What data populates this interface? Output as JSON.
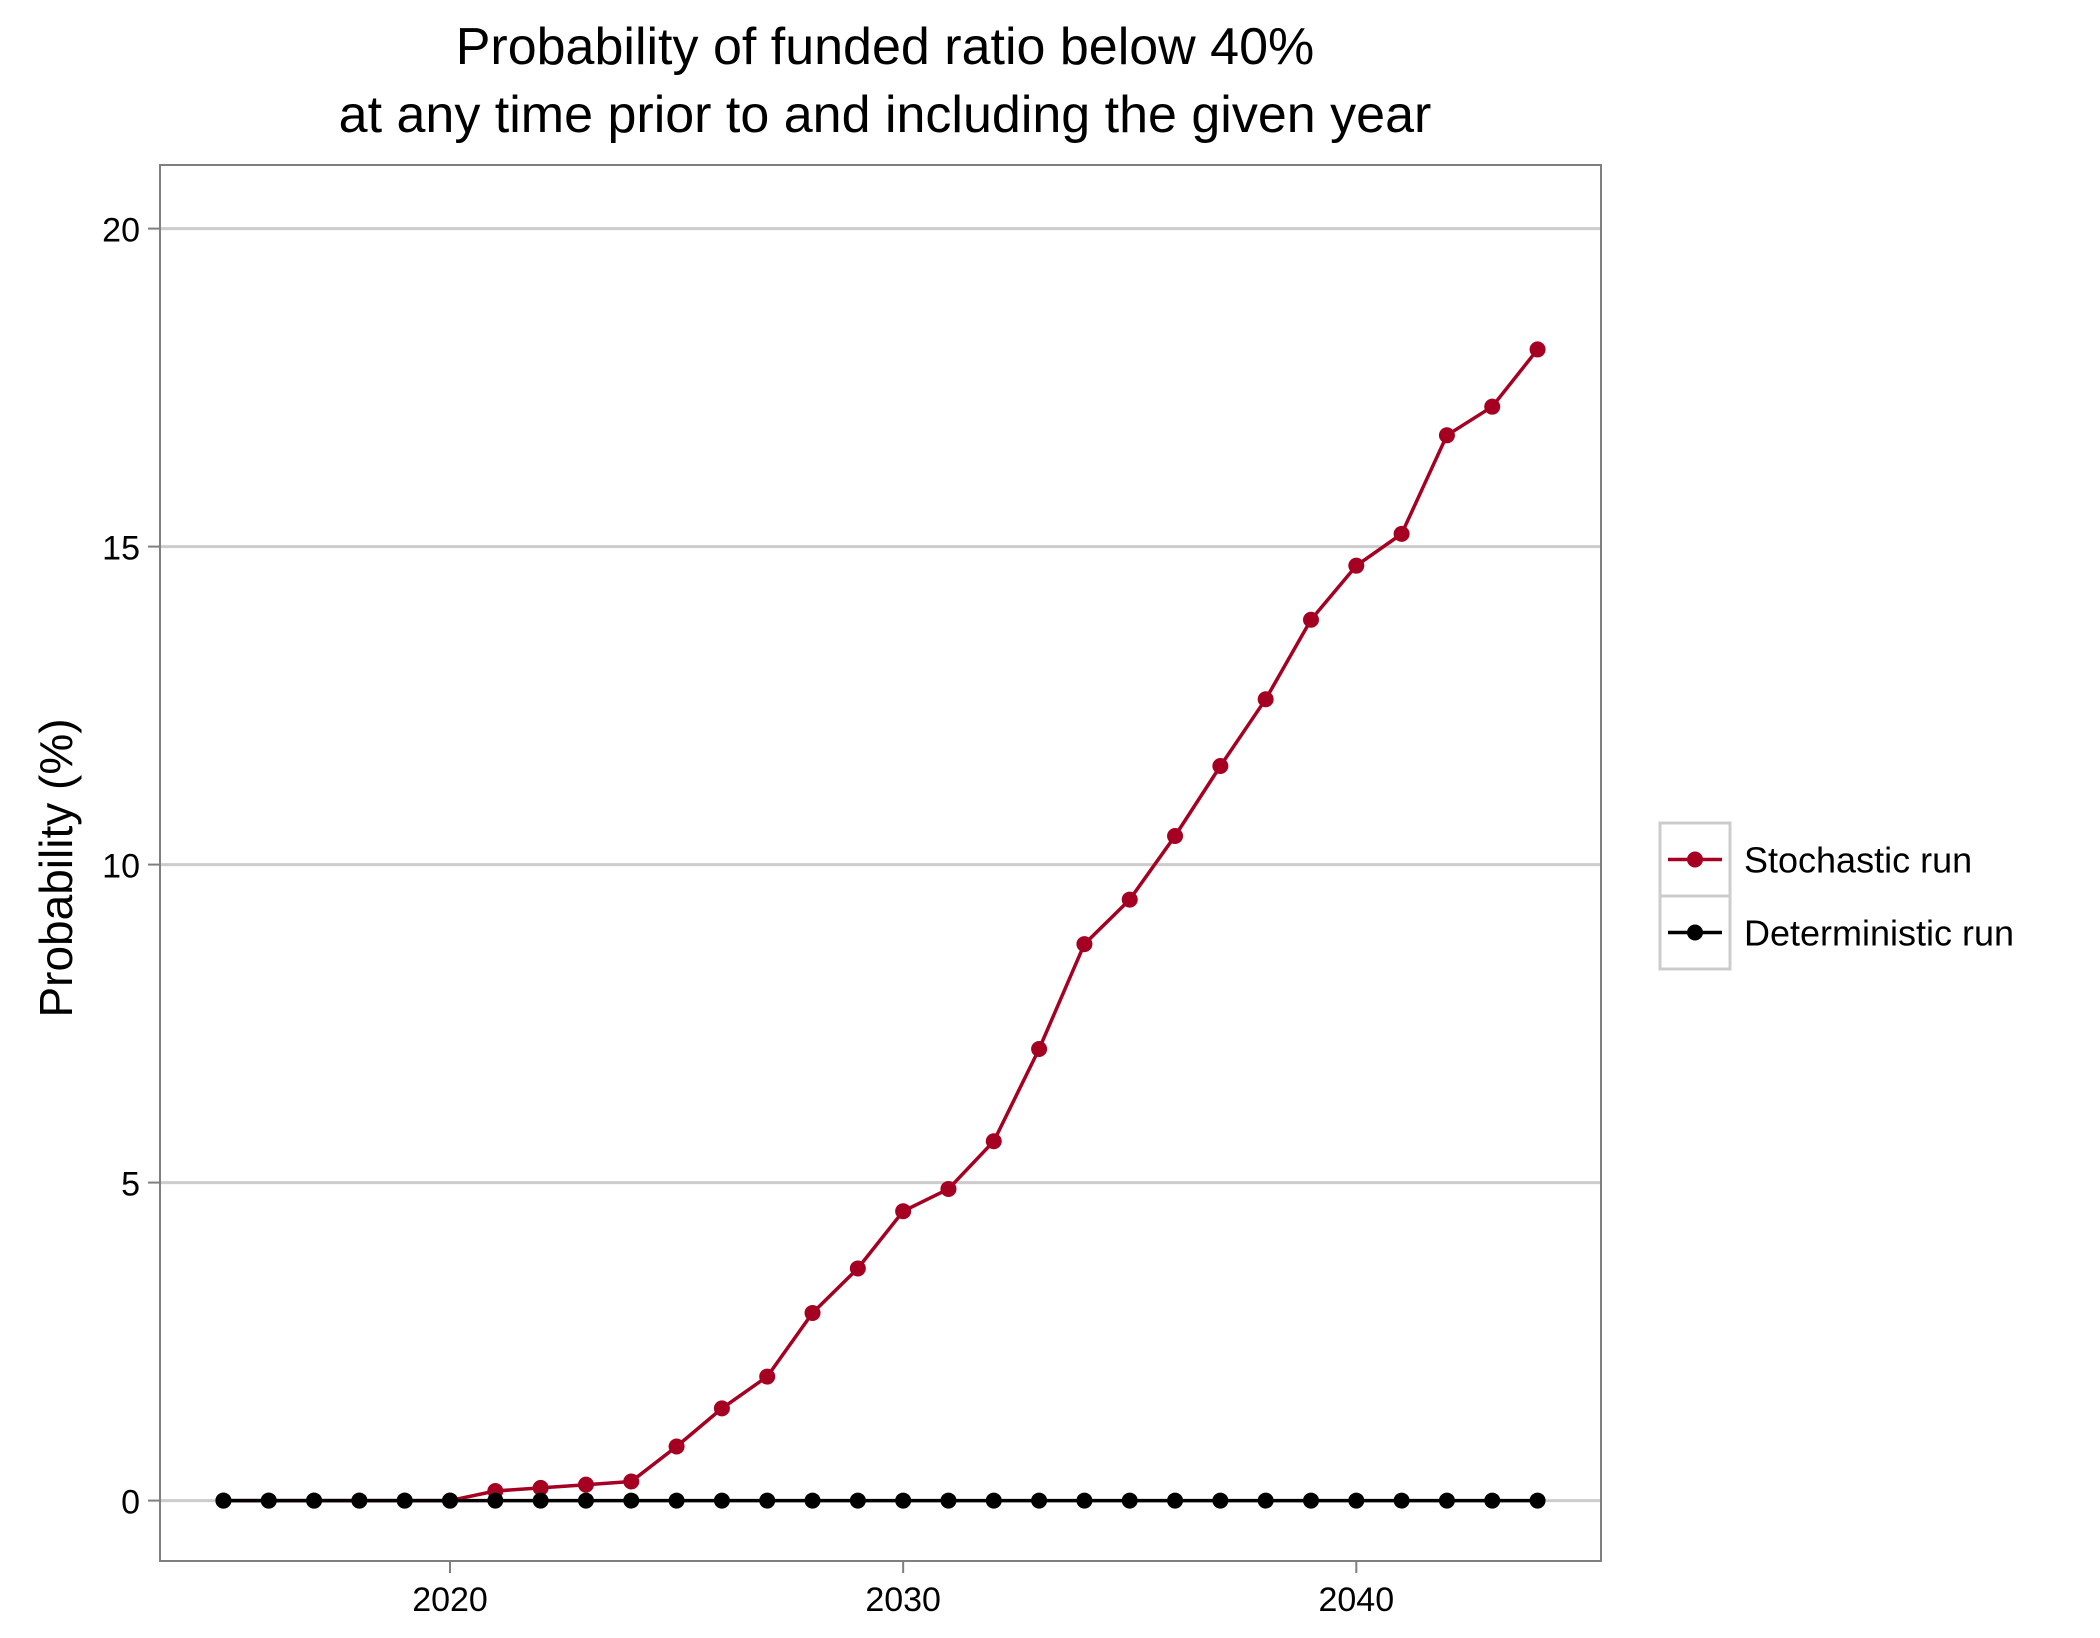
{
  "chart_data": {
    "type": "line",
    "title": "Probability of funded ratio below 40%",
    "subtitle": "at any time prior to and including the given year",
    "xlabel": "",
    "ylabel": "Probability (%)",
    "xlim": [
      2013.6,
      2045.4
    ],
    "ylim": [
      -0.95,
      21.0
    ],
    "x_ticks": [
      2020,
      2030,
      2040
    ],
    "y_ticks": [
      0,
      5,
      10,
      15,
      20
    ],
    "grid": "horizontal major gridlines",
    "legend_position": "right",
    "x": [
      2015,
      2016,
      2017,
      2018,
      2019,
      2020,
      2021,
      2022,
      2023,
      2024,
      2025,
      2026,
      2027,
      2028,
      2029,
      2030,
      2031,
      2032,
      2033,
      2034,
      2035,
      2036,
      2037,
      2038,
      2039,
      2040,
      2041,
      2042,
      2043,
      2044
    ],
    "series": [
      {
        "name": "Stochastic run",
        "color": "#A50021",
        "values": [
          0,
          0,
          0,
          0,
          0,
          0,
          0.15,
          0.2,
          0.25,
          0.3,
          0.85,
          1.45,
          1.95,
          2.95,
          3.65,
          4.55,
          4.9,
          5.65,
          7.1,
          8.75,
          9.45,
          10.45,
          11.55,
          12.6,
          13.85,
          14.7,
          15.2,
          16.75,
          17.2,
          18.1
        ]
      },
      {
        "name": "Deterministic run",
        "color": "#000000",
        "values": [
          0,
          0,
          0,
          0,
          0,
          0,
          0,
          0,
          0,
          0,
          0,
          0,
          0,
          0,
          0,
          0,
          0,
          0,
          0,
          0,
          0,
          0,
          0,
          0,
          0,
          0,
          0,
          0,
          0,
          0
        ]
      }
    ]
  }
}
